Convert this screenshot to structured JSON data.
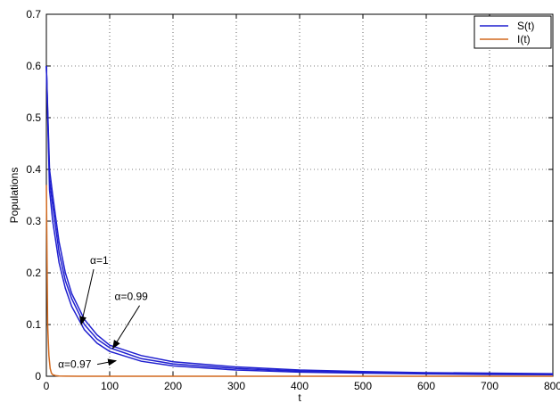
{
  "chart_data": {
    "type": "line",
    "xlabel": "t",
    "ylabel": "Populations",
    "xlim": [
      0,
      800
    ],
    "ylim": [
      0,
      0.7
    ],
    "xticks": [
      0,
      100,
      200,
      300,
      400,
      500,
      600,
      700,
      800
    ],
    "xtick_labels": [
      "0",
      "100",
      "200",
      "300",
      "400",
      "500",
      "600",
      "700",
      "800"
    ],
    "yticks": [
      0,
      0.1,
      0.2,
      0.3,
      0.4,
      0.5,
      0.6,
      0.7
    ],
    "ytick_labels": [
      "0",
      "0.1",
      "0.2",
      "0.3",
      "0.4",
      "0.5",
      "0.6",
      "0.7"
    ],
    "grid": true,
    "legend_position": "top-right",
    "legend": [
      {
        "label": "S(t)",
        "color": "#1f1fcf"
      },
      {
        "label": "I(t)",
        "color": "#d2691e"
      }
    ],
    "series": [
      {
        "legend": "S(t)",
        "label": "α=1",
        "color": "#1f1fcf",
        "x": [
          0,
          5,
          10,
          20,
          30,
          40,
          60,
          80,
          100,
          150,
          200,
          300,
          400,
          500,
          600,
          700,
          800
        ],
        "y": [
          0.6,
          0.4,
          0.35,
          0.26,
          0.2,
          0.16,
          0.11,
          0.08,
          0.06,
          0.04,
          0.028,
          0.018,
          0.012,
          0.009,
          0.007,
          0.006,
          0.005
        ]
      },
      {
        "legend": "S(t)",
        "label": "α=0.99",
        "color": "#1f1fcf",
        "x": [
          0,
          5,
          10,
          20,
          30,
          40,
          60,
          80,
          100,
          150,
          200,
          300,
          400,
          500,
          600,
          700,
          800
        ],
        "y": [
          0.6,
          0.38,
          0.33,
          0.24,
          0.185,
          0.15,
          0.1,
          0.072,
          0.055,
          0.034,
          0.024,
          0.015,
          0.01,
          0.0075,
          0.006,
          0.005,
          0.004
        ]
      },
      {
        "legend": "S(t)",
        "label": "α=0.97",
        "color": "#1f1fcf",
        "x": [
          0,
          5,
          10,
          20,
          30,
          40,
          60,
          80,
          100,
          150,
          200,
          300,
          400,
          500,
          600,
          700,
          800
        ],
        "y": [
          0.6,
          0.36,
          0.3,
          0.22,
          0.17,
          0.135,
          0.09,
          0.064,
          0.048,
          0.029,
          0.02,
          0.012,
          0.008,
          0.006,
          0.0045,
          0.0035,
          0.003
        ]
      },
      {
        "legend": "I(t)",
        "color": "#d2691e",
        "x": [
          0,
          2,
          4,
          6,
          8,
          10,
          15,
          20,
          30,
          50,
          100,
          200,
          400,
          800
        ],
        "y": [
          0.37,
          0.1,
          0.04,
          0.015,
          0.006,
          0.003,
          0.001,
          0.0005,
          0.0002,
          0.0001,
          0,
          0,
          0,
          0
        ]
      }
    ],
    "annotations": [
      {
        "text": "α=1",
        "target": [
          55,
          0.1
        ]
      },
      {
        "text": "α=0.99",
        "target": [
          105,
          0.054
        ]
      },
      {
        "text": "α=0.97",
        "target": [
          110,
          0.03
        ]
      }
    ]
  }
}
